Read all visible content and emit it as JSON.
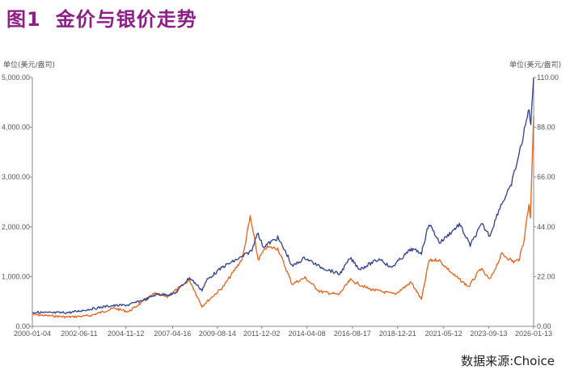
{
  "title": {
    "figure_number": "图1",
    "text": "金价与银价走势"
  },
  "source_note": "数据来源:Choice",
  "colors": {
    "title": "#8e1f86",
    "gold_line": "#2f3f8f",
    "silver_line": "#e8601a",
    "axis": "#888888"
  },
  "chart_data": {
    "type": "line",
    "left_axis": {
      "unit_label": "单位(美元/盎司)",
      "ticks": [
        "0.00",
        "1,000.00",
        "2,000.00",
        "3,000.00",
        "4,000.00",
        "5,000.00"
      ],
      "ylim": [
        0,
        5000
      ]
    },
    "right_axis": {
      "unit_label": "单位(美元/盎司)",
      "ticks": [
        "0.00",
        "22.00",
        "44.00",
        "66.00",
        "88.00",
        "110.00"
      ],
      "ylim": [
        0,
        110
      ]
    },
    "x_tick_labels": [
      "2000-01-04",
      "2002-06-11",
      "2004-11-12",
      "2007-04-16",
      "2009-08-14",
      "2011-12-02",
      "2014-04-08",
      "2016-08-17",
      "2018-12-21",
      "2021-05-12",
      "2023-09-13",
      "2026-01-13"
    ],
    "series": [
      {
        "axis": "left",
        "color": "#2f3f8f",
        "points": [
          [
            "2000-01-04",
            285
          ],
          [
            "2001-01-01",
            270
          ],
          [
            "2002-01-01",
            280
          ],
          [
            "2003-01-01",
            345
          ],
          [
            "2004-01-01",
            410
          ],
          [
            "2005-01-01",
            430
          ],
          [
            "2006-01-01",
            560
          ],
          [
            "2006-06-01",
            640
          ],
          [
            "2007-01-01",
            640
          ],
          [
            "2007-06-01",
            660
          ],
          [
            "2008-03-01",
            980
          ],
          [
            "2008-10-24",
            730
          ],
          [
            "2009-02-01",
            940
          ],
          [
            "2009-12-01",
            1200
          ],
          [
            "2010-12-01",
            1400
          ],
          [
            "2011-06-01",
            1530
          ],
          [
            "2011-09-05",
            1890
          ],
          [
            "2012-01-01",
            1600
          ],
          [
            "2012-10-01",
            1780
          ],
          [
            "2013-04-15",
            1400
          ],
          [
            "2013-06-28",
            1200
          ],
          [
            "2014-03-01",
            1380
          ],
          [
            "2014-12-01",
            1200
          ],
          [
            "2015-12-17",
            1050
          ],
          [
            "2016-07-06",
            1370
          ],
          [
            "2017-01-01",
            1150
          ],
          [
            "2018-01-25",
            1360
          ],
          [
            "2018-08-16",
            1175
          ],
          [
            "2019-09-04",
            1550
          ],
          [
            "2020-03-19",
            1480
          ],
          [
            "2020-08-06",
            2070
          ],
          [
            "2021-03-01",
            1680
          ],
          [
            "2022-03-08",
            2050
          ],
          [
            "2022-09-28",
            1630
          ],
          [
            "2023-05-04",
            2050
          ],
          [
            "2023-10-05",
            1820
          ],
          [
            "2024-04-12",
            2400
          ],
          [
            "2024-10-30",
            2790
          ],
          [
            "2025-04-22",
            3500
          ],
          [
            "2025-10-20",
            4380
          ],
          [
            "2025-11-20",
            4050
          ],
          [
            "2026-01-13",
            5000
          ]
        ]
      },
      {
        "axis": "right",
        "color": "#e8601a",
        "points": [
          [
            "2000-01-04",
            5.2
          ],
          [
            "2001-11-01",
            4.1
          ],
          [
            "2003-01-01",
            4.7
          ],
          [
            "2004-04-01",
            8.0
          ],
          [
            "2005-01-01",
            6.5
          ],
          [
            "2006-05-12",
            14.5
          ],
          [
            "2007-01-01",
            13.0
          ],
          [
            "2008-03-01",
            20.5
          ],
          [
            "2008-10-24",
            8.9
          ],
          [
            "2009-12-01",
            17.5
          ],
          [
            "2010-12-01",
            30.0
          ],
          [
            "2011-04-28",
            48.5
          ],
          [
            "2011-09-26",
            29.5
          ],
          [
            "2012-03-01",
            35.0
          ],
          [
            "2012-10-01",
            34.5
          ],
          [
            "2013-06-28",
            18.7
          ],
          [
            "2014-03-01",
            21.5
          ],
          [
            "2014-12-01",
            15.5
          ],
          [
            "2015-12-01",
            14.0
          ],
          [
            "2016-07-06",
            20.5
          ],
          [
            "2017-07-01",
            16.5
          ],
          [
            "2018-11-01",
            14.2
          ],
          [
            "2019-09-04",
            19.5
          ],
          [
            "2020-03-18",
            11.8
          ],
          [
            "2020-08-06",
            29.0
          ],
          [
            "2021-02-01",
            29.5
          ],
          [
            "2021-12-01",
            22.5
          ],
          [
            "2022-08-31",
            17.5
          ],
          [
            "2023-04-15",
            25.5
          ],
          [
            "2023-10-05",
            20.5
          ],
          [
            "2024-05-20",
            32.0
          ],
          [
            "2024-12-31",
            28.5
          ],
          [
            "2025-04-08",
            29.5
          ],
          [
            "2025-07-01",
            36.5
          ],
          [
            "2025-10-16",
            54.0
          ],
          [
            "2025-11-12",
            48.5
          ],
          [
            "2026-01-13",
            93.0
          ]
        ]
      }
    ]
  }
}
